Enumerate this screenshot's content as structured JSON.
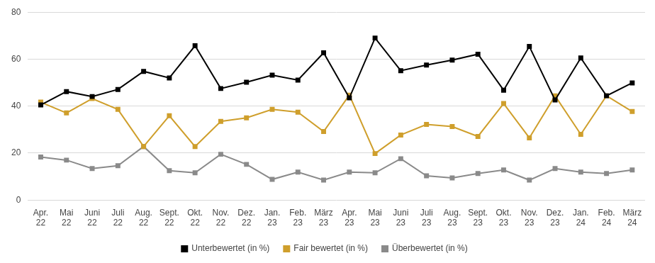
{
  "chart_data": {
    "type": "line",
    "categories": [
      "Apr. 22",
      "Mai 22",
      "Juni 22",
      "Juli 22",
      "Aug. 22",
      "Sept. 22",
      "Okt. 22",
      "Nov. 22",
      "Dez. 22",
      "Jan. 23",
      "Feb. 23",
      "März 23",
      "Apr. 23",
      "Mai 23",
      "Juni 23",
      "Juli 23",
      "Aug. 23",
      "Sept. 23",
      "Okt. 23",
      "Nov. 23",
      "Dez. 23",
      "Jan. 24",
      "Feb. 24",
      "März 24"
    ],
    "series": [
      {
        "name": "Unterbewertet (in %)",
        "color": "#000000",
        "marker": "square",
        "line_style": "solid",
        "values": [
          40.5,
          46.2,
          44.1,
          47.1,
          54.8,
          52.0,
          65.7,
          47.5,
          50.2,
          53.2,
          51.1,
          62.7,
          43.5,
          69.0,
          55.1,
          57.5,
          59.6,
          62.1,
          46.8,
          65.4,
          42.6,
          60.5,
          44.4,
          49.9
        ]
      },
      {
        "name": "Fair bewertet (in %)",
        "color": "#cf9f2c",
        "marker": "square",
        "line_style": "solid",
        "values": [
          41.7,
          37.1,
          43.2,
          38.6,
          22.8,
          35.9,
          22.8,
          33.5,
          35.0,
          38.6,
          37.4,
          29.2,
          44.7,
          19.8,
          27.7,
          32.2,
          31.3,
          27.1,
          41.1,
          26.5,
          44.4,
          28.0,
          44.4,
          37.7
        ]
      },
      {
        "name": "Überbewertet (in %)",
        "color": "#8a8a8a",
        "marker": "square",
        "line_style": "solid",
        "values": [
          18.3,
          17.0,
          13.4,
          14.6,
          22.8,
          12.5,
          11.6,
          19.5,
          15.2,
          8.8,
          11.9,
          8.5,
          11.9,
          11.6,
          17.6,
          10.3,
          9.4,
          11.3,
          12.8,
          8.5,
          13.4,
          11.9,
          11.3,
          12.8
        ]
      }
    ],
    "ylim": [
      0,
      80
    ],
    "yticks": [
      0,
      20,
      40,
      60,
      80
    ],
    "grid": true,
    "legend": "bottom"
  }
}
